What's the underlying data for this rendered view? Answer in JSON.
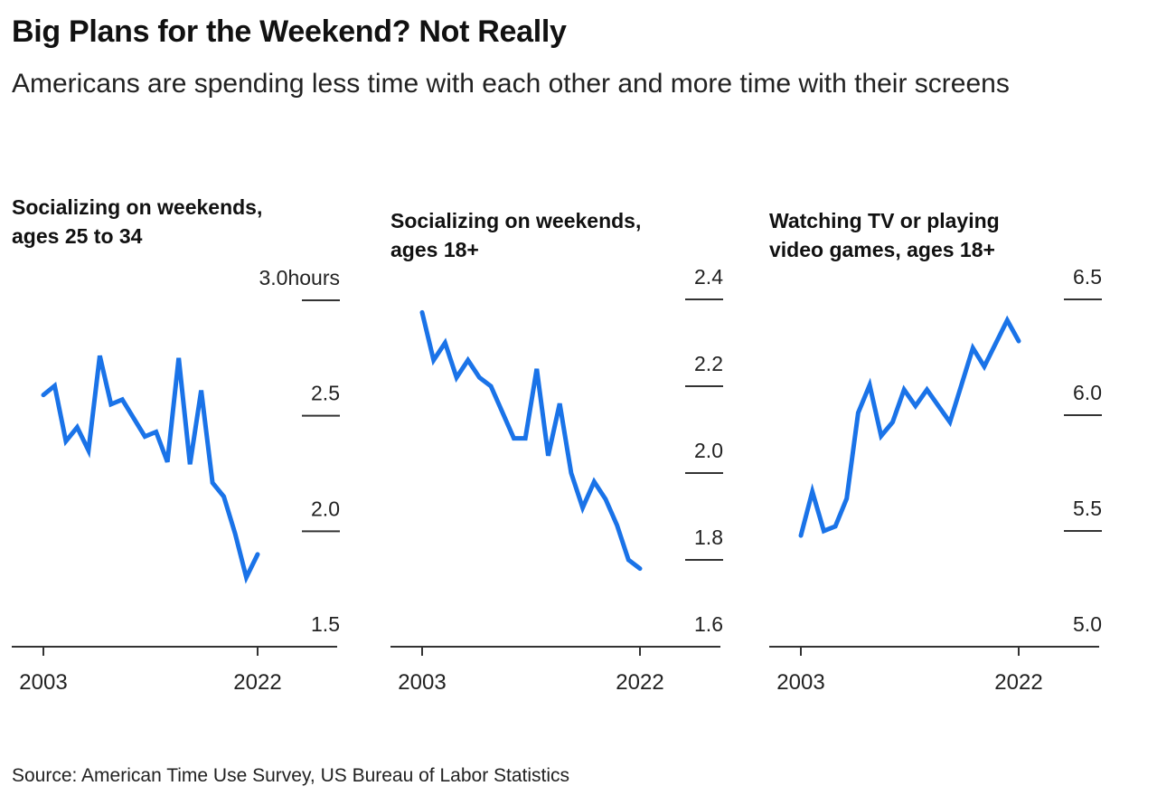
{
  "title": "Big Plans for the Weekend? Not Really",
  "subtitle": "Americans are spending less time with each other and more time with their screens",
  "source": "Source: American Time Use Survey, US Bureau of Labor Statistics",
  "colors": {
    "line": "#1a73e8",
    "axis": "#333333",
    "text": "#222222"
  },
  "chart_data": [
    {
      "type": "line",
      "title": "Socializing on weekends, ages 25 to 34",
      "xlabel": "",
      "ylabel": "hours",
      "x": [
        2003,
        2004,
        2005,
        2006,
        2007,
        2008,
        2009,
        2010,
        2011,
        2012,
        2013,
        2014,
        2015,
        2016,
        2017,
        2018,
        2019,
        2020,
        2021,
        2022
      ],
      "values": [
        2.59,
        2.63,
        2.39,
        2.45,
        2.35,
        2.76,
        2.55,
        2.57,
        2.49,
        2.41,
        2.43,
        2.3,
        2.75,
        2.29,
        2.61,
        2.21,
        2.15,
        1.99,
        1.8,
        1.9
      ],
      "ylim": [
        1.5,
        3.0
      ],
      "yticks": [
        1.5,
        2.0,
        2.5,
        3.0
      ],
      "ytick_labels": [
        "1.5",
        "2.0",
        "2.5",
        "3.0hours"
      ],
      "xticks": [
        2003,
        2022
      ],
      "xtick_labels": [
        "2003",
        "2022"
      ],
      "grid": false
    },
    {
      "type": "line",
      "title": "Socializing on weekends, ages 18+",
      "xlabel": "",
      "ylabel": "hours",
      "x": [
        2003,
        2004,
        2005,
        2006,
        2007,
        2008,
        2009,
        2010,
        2011,
        2012,
        2013,
        2014,
        2015,
        2016,
        2017,
        2018,
        2019,
        2020,
        2021,
        2022
      ],
      "values": [
        2.37,
        2.26,
        2.3,
        2.22,
        2.26,
        2.22,
        2.2,
        2.14,
        2.08,
        2.08,
        2.24,
        2.04,
        2.16,
        2.0,
        1.92,
        1.98,
        1.94,
        1.88,
        1.8,
        1.78
      ],
      "ylim": [
        1.6,
        2.4
      ],
      "yticks": [
        1.6,
        1.8,
        2.0,
        2.2,
        2.4
      ],
      "ytick_labels": [
        "1.6",
        "1.8",
        "2.0",
        "2.2",
        "2.4"
      ],
      "xticks": [
        2003,
        2022
      ],
      "xtick_labels": [
        "2003",
        "2022"
      ],
      "grid": false
    },
    {
      "type": "line",
      "title": "Watching TV or playing video games, ages 18+",
      "xlabel": "",
      "ylabel": "hours",
      "x": [
        2003,
        2004,
        2005,
        2006,
        2007,
        2008,
        2009,
        2010,
        2011,
        2012,
        2013,
        2014,
        2015,
        2016,
        2017,
        2018,
        2019,
        2020,
        2021,
        2022
      ],
      "values": [
        5.48,
        5.67,
        5.5,
        5.52,
        5.64,
        6.01,
        6.13,
        5.91,
        5.97,
        6.11,
        6.04,
        6.11,
        6.04,
        5.97,
        6.13,
        6.29,
        6.21,
        6.31,
        6.41,
        6.32
      ],
      "ylim": [
        5.0,
        6.5
      ],
      "yticks": [
        5.0,
        5.5,
        6.0,
        6.5
      ],
      "ytick_labels": [
        "5.0",
        "5.5",
        "6.0",
        "6.5"
      ],
      "xticks": [
        2003,
        2022
      ],
      "xtick_labels": [
        "2003",
        "2022"
      ],
      "grid": false
    }
  ],
  "panels": [
    {
      "title_line1": "Socializing on weekends,",
      "title_line2": "ages 25 to 34"
    },
    {
      "title_line1": "Socializing on weekends,",
      "title_line2": "ages 18+"
    },
    {
      "title_line1": "Watching TV or playing",
      "title_line2": "video games, ages 18+"
    }
  ]
}
